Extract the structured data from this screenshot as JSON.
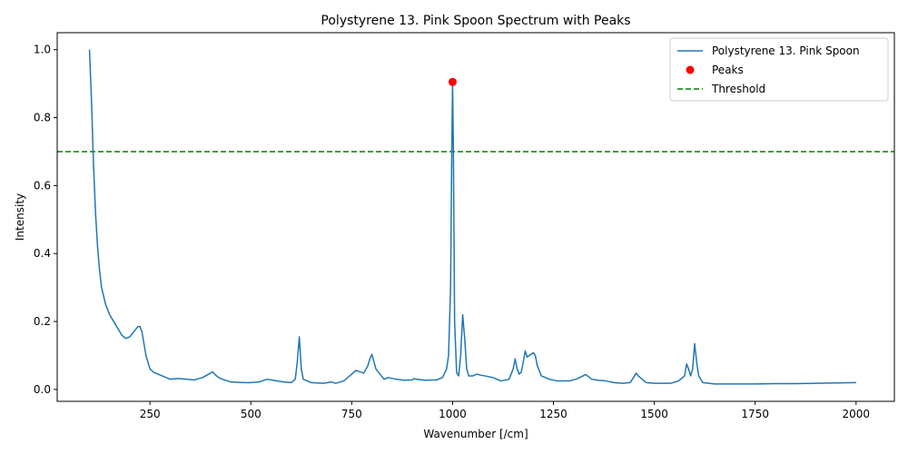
{
  "chart_data": {
    "type": "line",
    "title": "Polystyrene 13. Pink Spoon Spectrum with Peaks",
    "xlabel": "Wavenumber [/cm]",
    "ylabel": "Intensity",
    "xlim": [
      20,
      2095
    ],
    "ylim": [
      -0.035,
      1.05
    ],
    "xticks": [
      250,
      500,
      750,
      1000,
      1250,
      1500,
      1750,
      2000
    ],
    "xtick_labels": [
      "250",
      "500",
      "750",
      "1000",
      "1250",
      "1500",
      "1750",
      "2000"
    ],
    "yticks": [
      0.0,
      0.2,
      0.4,
      0.6,
      0.8,
      1.0
    ],
    "ytick_labels": [
      "0.0",
      "0.2",
      "0.4",
      "0.6",
      "0.8",
      "1.0"
    ],
    "legend_position": "top-right",
    "colors": {
      "line": "#1f77b4",
      "peaks": "#ff0000",
      "threshold": "#008000"
    },
    "series": [
      {
        "name": "Polystyrene 13. Pink Spoon",
        "x": [
          100,
          105,
          110,
          115,
          120,
          125,
          130,
          140,
          150,
          160,
          170,
          180,
          190,
          200,
          210,
          220,
          225,
          230,
          240,
          250,
          260,
          270,
          280,
          290,
          300,
          320,
          340,
          360,
          380,
          400,
          405,
          410,
          420,
          430,
          450,
          480,
          500,
          520,
          540,
          560,
          580,
          600,
          610,
          615,
          620,
          625,
          630,
          650,
          680,
          700,
          710,
          730,
          750,
          760,
          770,
          780,
          790,
          795,
          800,
          810,
          830,
          840,
          860,
          880,
          900,
          905,
          910,
          930,
          960,
          975,
          985,
          990,
          995,
          998,
          1000,
          1002,
          1005,
          1010,
          1015,
          1020,
          1025,
          1030,
          1035,
          1040,
          1050,
          1060,
          1070,
          1080,
          1100,
          1120,
          1140,
          1150,
          1155,
          1160,
          1165,
          1170,
          1175,
          1180,
          1185,
          1190,
          1200,
          1205,
          1210,
          1220,
          1240,
          1260,
          1290,
          1310,
          1330,
          1345,
          1360,
          1380,
          1400,
          1420,
          1440,
          1450,
          1455,
          1460,
          1480,
          1500,
          1520,
          1540,
          1560,
          1575,
          1580,
          1585,
          1590,
          1595,
          1600,
          1605,
          1610,
          1620,
          1650,
          1700,
          1750,
          1800,
          1850,
          1900,
          1950,
          2000
        ],
        "values": [
          1.0,
          0.85,
          0.66,
          0.52,
          0.42,
          0.35,
          0.3,
          0.25,
          0.22,
          0.2,
          0.18,
          0.16,
          0.15,
          0.155,
          0.17,
          0.185,
          0.185,
          0.17,
          0.1,
          0.06,
          0.05,
          0.045,
          0.04,
          0.035,
          0.03,
          0.032,
          0.03,
          0.028,
          0.035,
          0.048,
          0.052,
          0.045,
          0.035,
          0.03,
          0.022,
          0.02,
          0.02,
          0.022,
          0.03,
          0.026,
          0.022,
          0.02,
          0.03,
          0.08,
          0.155,
          0.06,
          0.03,
          0.02,
          0.018,
          0.022,
          0.018,
          0.025,
          0.045,
          0.056,
          0.052,
          0.048,
          0.07,
          0.09,
          0.103,
          0.06,
          0.03,
          0.035,
          0.03,
          0.027,
          0.028,
          0.032,
          0.03,
          0.027,
          0.028,
          0.035,
          0.06,
          0.1,
          0.3,
          0.7,
          0.905,
          0.7,
          0.2,
          0.05,
          0.04,
          0.1,
          0.22,
          0.15,
          0.06,
          0.04,
          0.04,
          0.045,
          0.042,
          0.04,
          0.035,
          0.025,
          0.03,
          0.06,
          0.09,
          0.06,
          0.045,
          0.05,
          0.08,
          0.113,
          0.095,
          0.1,
          0.108,
          0.1,
          0.07,
          0.04,
          0.03,
          0.025,
          0.025,
          0.032,
          0.044,
          0.03,
          0.027,
          0.025,
          0.02,
          0.018,
          0.02,
          0.038,
          0.048,
          0.04,
          0.02,
          0.018,
          0.018,
          0.018,
          0.025,
          0.04,
          0.075,
          0.06,
          0.04,
          0.06,
          0.135,
          0.08,
          0.04,
          0.02,
          0.016,
          0.016,
          0.016,
          0.017,
          0.017,
          0.018,
          0.019,
          0.02
        ]
      }
    ],
    "peaks": {
      "name": "Peaks",
      "x": [
        1000
      ],
      "values": [
        0.905
      ]
    },
    "threshold": {
      "name": "Threshold",
      "value": 0.7
    }
  }
}
